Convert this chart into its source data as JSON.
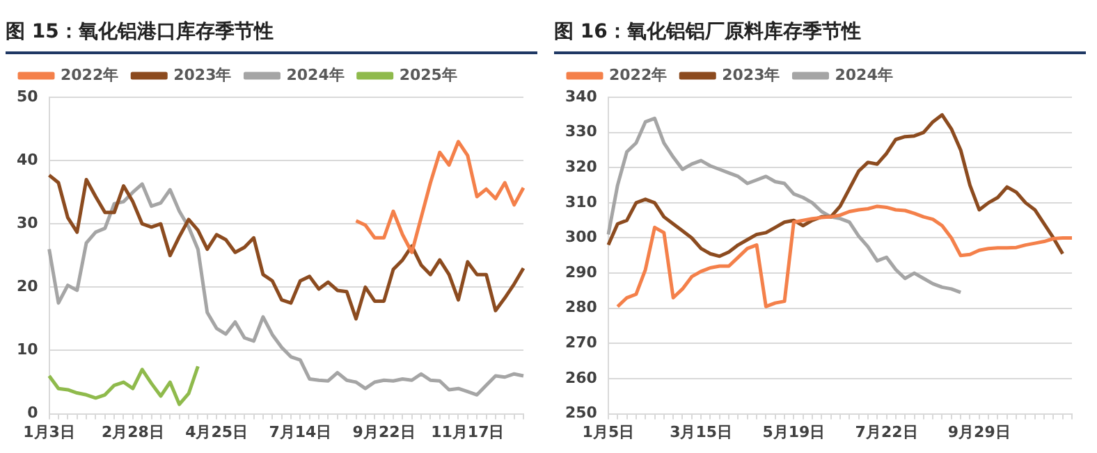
{
  "chart_data": [
    {
      "type": "line",
      "title": "图 15：氧化铝港口库存季节性",
      "categories": [
        "1月3日",
        null,
        null,
        null,
        null,
        null,
        null,
        null,
        null,
        "2月28日",
        null,
        null,
        null,
        null,
        null,
        null,
        null,
        null,
        "4月25日",
        null,
        null,
        null,
        null,
        null,
        null,
        null,
        null,
        "7月14日",
        null,
        null,
        null,
        null,
        null,
        null,
        null,
        null,
        "9月22日",
        null,
        null,
        null,
        null,
        null,
        null,
        null,
        null,
        "11月17日",
        null,
        null,
        null,
        null,
        null,
        null
      ],
      "series": [
        {
          "name": "2022年",
          "color": "#f4804a",
          "values": [
            null,
            null,
            null,
            null,
            null,
            null,
            null,
            null,
            null,
            null,
            null,
            null,
            null,
            null,
            null,
            null,
            null,
            null,
            null,
            null,
            null,
            null,
            null,
            null,
            null,
            null,
            null,
            null,
            null,
            null,
            null,
            null,
            null,
            30.5,
            29.8,
            27.8,
            27.8,
            32,
            28.3,
            25.5,
            31,
            36.5,
            41.3,
            39.3,
            43,
            40.8,
            34.3,
            35.5,
            34,
            36.5,
            33,
            35.7
          ]
        },
        {
          "name": "2023年",
          "color": "#8c4b1f",
          "values": [
            37.7,
            36.5,
            31,
            28.7,
            37,
            34.3,
            31.8,
            31.8,
            36,
            33.5,
            30,
            29.5,
            30,
            25,
            28,
            30.7,
            29,
            26,
            28.3,
            27.5,
            25.5,
            26.3,
            27.8,
            22,
            21,
            18,
            17.5,
            21,
            21.7,
            19.7,
            20.8,
            19.5,
            19.3,
            15,
            20,
            17.8,
            17.8,
            22.8,
            24.3,
            26.5,
            23.5,
            22,
            24.3,
            22,
            18,
            24,
            22,
            22,
            16.3,
            18.3,
            20.5,
            23
          ]
        },
        {
          "name": "2024年",
          "color": "#a5a5a5",
          "values": [
            26,
            17.5,
            20.3,
            19.5,
            27,
            28.7,
            29.3,
            33.2,
            33.5,
            35,
            36.3,
            32.8,
            33.3,
            35.4,
            32,
            29.5,
            26,
            16,
            13.5,
            12.6,
            14.5,
            12,
            11.5,
            15.3,
            12.5,
            10.5,
            9,
            8.5,
            5.5,
            5.3,
            5.2,
            6.5,
            5.3,
            5,
            4,
            5,
            5.3,
            5.2,
            5.5,
            5.3,
            6.3,
            5.3,
            5.2,
            3.8,
            4,
            3.5,
            3,
            4.5,
            6,
            5.8,
            6.3,
            6
          ]
        },
        {
          "name": "2025年",
          "color": "#8fba4c",
          "values": [
            6,
            4,
            3.8,
            3.3,
            3,
            2.5,
            3,
            4.5,
            5,
            4,
            7,
            4.8,
            2.8,
            5,
            1.5,
            3.2,
            7.5,
            null,
            null,
            null,
            null,
            null,
            null,
            null,
            null,
            null,
            null,
            null,
            null,
            null,
            null,
            null,
            null,
            null,
            null,
            null,
            null,
            null,
            null,
            null,
            null,
            null,
            null,
            null,
            null,
            null,
            null,
            null,
            null,
            null,
            null,
            null
          ]
        }
      ],
      "ylim": [
        0,
        50
      ],
      "yticks": [
        0,
        10,
        20,
        30,
        40,
        50
      ],
      "grid": "y",
      "legend": "top",
      "marker": "none"
    },
    {
      "type": "line",
      "title": "图 16：氧化铝铝厂原料库存季节性",
      "categories": [
        "1月5日",
        null,
        null,
        null,
        null,
        null,
        null,
        null,
        null,
        null,
        "3月15日",
        null,
        null,
        null,
        null,
        null,
        null,
        null,
        null,
        null,
        "5月19日",
        null,
        null,
        null,
        null,
        null,
        null,
        null,
        null,
        null,
        "7月22日",
        null,
        null,
        null,
        null,
        null,
        null,
        null,
        null,
        null,
        "9月29日",
        null,
        null,
        null,
        null,
        null,
        null,
        null,
        null,
        null,
        null
      ],
      "series": [
        {
          "name": "2022年",
          "color": "#f4804a",
          "values": [
            null,
            280.5,
            283,
            284,
            291,
            303,
            301.5,
            283,
            285.5,
            289,
            290.5,
            291.5,
            292,
            292,
            294.5,
            297,
            298,
            280.5,
            281.5,
            282,
            304.5,
            305,
            305.5,
            305.8,
            306,
            306.5,
            307.5,
            308,
            308.3,
            309,
            308.7,
            308,
            307.8,
            307,
            306,
            305.3,
            303.5,
            300,
            295,
            295.3,
            296.5,
            297,
            297.2,
            297.2,
            297.3,
            298,
            298.5,
            299,
            299.8,
            300,
            300
          ]
        },
        {
          "name": "2023年",
          "color": "#8c4b1f",
          "values": [
            298,
            304,
            305,
            310,
            311,
            310,
            306,
            304,
            302,
            300,
            297,
            295.5,
            294.8,
            296,
            298,
            299.5,
            301,
            301.5,
            303,
            304.5,
            305,
            303.5,
            305,
            306,
            306,
            309,
            314,
            319,
            321.5,
            321,
            324,
            328,
            328.8,
            329,
            330,
            333,
            335,
            331,
            325,
            315,
            308,
            310,
            311.5,
            314.5,
            313,
            310,
            308,
            304,
            300,
            295.5,
            null
          ]
        },
        {
          "name": "2024年",
          "color": "#a5a5a5",
          "values": [
            301,
            315,
            324.5,
            327,
            333,
            334,
            327,
            323,
            319.5,
            321,
            322,
            320.5,
            319.5,
            318.5,
            317.5,
            315.5,
            316.5,
            317.5,
            316,
            315.5,
            312.5,
            311.5,
            310,
            307.5,
            306,
            305.5,
            304.5,
            300.5,
            297.5,
            293.5,
            294.5,
            291,
            288.5,
            290,
            288.5,
            287,
            286,
            285.5,
            284.5,
            null,
            null,
            null,
            null,
            null,
            null,
            null,
            null,
            null,
            null,
            null,
            null
          ]
        }
      ],
      "ylim": [
        250,
        340
      ],
      "yticks": [
        250,
        260,
        270,
        280,
        290,
        300,
        310,
        320,
        330,
        340
      ],
      "grid": "y",
      "legend": "top",
      "marker": "none"
    }
  ]
}
